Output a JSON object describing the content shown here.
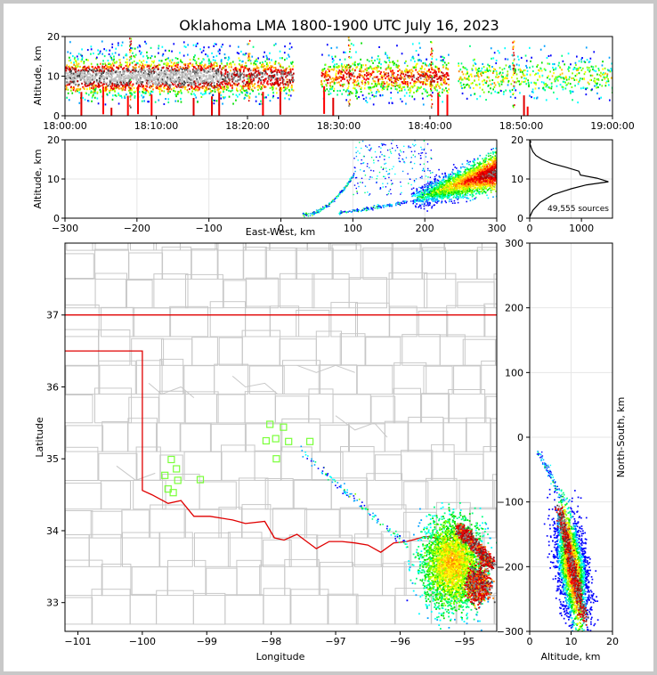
{
  "title": "Oklahoma LMA 1800-1900 UTC July 16, 2023",
  "chart_data": [
    {
      "panel": "altitude-vs-time",
      "type": "heatmap",
      "ylabel": "Altitude, km",
      "xlabel": "",
      "xlim": [
        "18:00:00",
        "19:00:00"
      ],
      "ylim": [
        0,
        20
      ],
      "x_ticks": [
        "18:00:00",
        "18:10:00",
        "18:20:00",
        "18:30:00",
        "18:40:00",
        "18:50:00",
        "19:00:00"
      ],
      "y_ticks": [
        "0",
        "10",
        "20"
      ],
      "grid": false
    },
    {
      "panel": "altitude-vs-east-west",
      "type": "heatmap",
      "ylabel": "Altitude, km",
      "xlabel": "East-West, km",
      "xlim": [
        -300,
        300
      ],
      "ylim": [
        0,
        20
      ],
      "x_ticks": [
        "−300",
        "−200",
        "−100",
        "0",
        "100",
        "200",
        "300"
      ],
      "y_ticks": [
        "0",
        "10",
        "20"
      ],
      "grid": true
    },
    {
      "panel": "source-altitude-histogram",
      "type": "line",
      "x_ticks": [
        "0",
        "1000"
      ],
      "y_ticks": [
        "0",
        "10",
        "20"
      ],
      "annotation": "49,555 sources",
      "xlim": [
        0,
        1600
      ],
      "ylim": [
        0,
        20
      ],
      "series": [
        {
          "x": [
            0,
            60,
            200,
            450,
            800,
            1100,
            1520,
            1300,
            980,
            950,
            700,
            420,
            240,
            120,
            60,
            30,
            5,
            20,
            0
          ],
          "y": [
            0.3,
            2.0,
            4.0,
            6.0,
            7.5,
            8.5,
            9.3,
            10.2,
            11.0,
            12.0,
            13.0,
            14.0,
            15.0,
            16.0,
            17.0,
            18.0,
            19.0,
            19.5,
            20.0
          ]
        }
      ]
    },
    {
      "panel": "plan-view-map",
      "type": "scatter",
      "xlabel": "Longitude",
      "ylabel": "Latitude",
      "xlim": [
        -101.2,
        -94.5
      ],
      "ylim": [
        32.6,
        38.0
      ],
      "x_ticks": [
        "−101",
        "−100",
        "−99",
        "−98",
        "−97",
        "−96",
        "−95"
      ],
      "y_ticks": [
        "33",
        "34",
        "35",
        "36",
        "37"
      ],
      "stations": [
        {
          "lon": -99.55,
          "lat": 34.99
        },
        {
          "lon": -99.47,
          "lat": 34.86
        },
        {
          "lon": -99.65,
          "lat": 34.77
        },
        {
          "lon": -99.45,
          "lat": 34.7
        },
        {
          "lon": -99.6,
          "lat": 34.58
        },
        {
          "lon": -99.52,
          "lat": 34.53
        },
        {
          "lon": -99.1,
          "lat": 34.71
        },
        {
          "lon": -98.02,
          "lat": 35.48
        },
        {
          "lon": -97.81,
          "lat": 35.44
        },
        {
          "lon": -98.08,
          "lat": 35.25
        },
        {
          "lon": -97.93,
          "lat": 35.28
        },
        {
          "lon": -97.73,
          "lat": 35.24
        },
        {
          "lon": -97.4,
          "lat": 35.24
        },
        {
          "lon": -97.92,
          "lat": 35.0
        }
      ]
    },
    {
      "panel": "north-south-vs-altitude",
      "type": "heatmap",
      "xlabel": "Altitude, km",
      "ylabel": "North-South, km",
      "xlim": [
        0,
        20
      ],
      "ylim": [
        -300,
        300
      ],
      "x_ticks": [
        "0",
        "10",
        "20"
      ],
      "y_ticks": [
        "−300",
        "−200",
        "−100",
        "0",
        "100",
        "200",
        "300"
      ],
      "grid": true
    }
  ]
}
